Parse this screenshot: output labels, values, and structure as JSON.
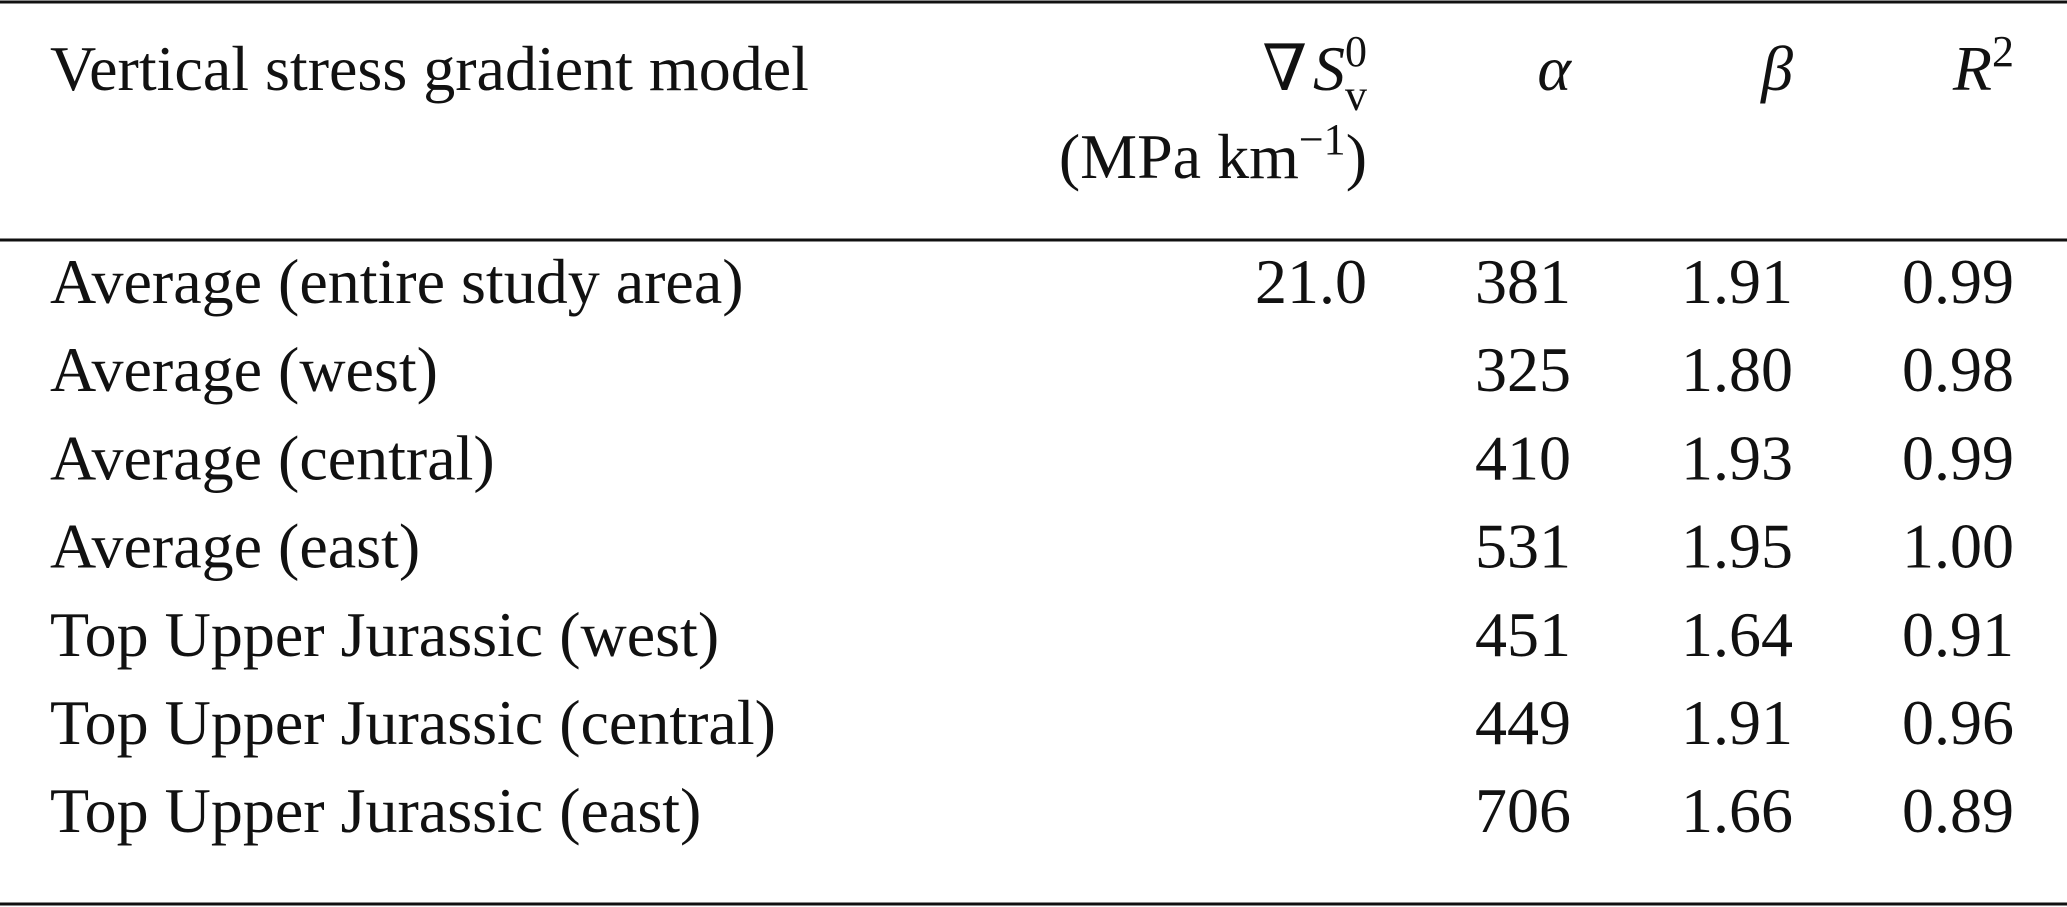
{
  "table": {
    "header": {
      "model": "Vertical stress gradient model",
      "gradient": {
        "op": "∇",
        "var": "S",
        "sub": "v",
        "sup": "0",
        "unit_open": "(MPa km",
        "unit_sup": "−1",
        "unit_close": ")"
      },
      "alpha": "α",
      "beta": "β",
      "r2": {
        "var": "R",
        "sup": "2"
      }
    },
    "rows": [
      {
        "model": "Average (entire study area)",
        "gradient": "21.0",
        "alpha": "381",
        "beta": "1.91",
        "r2": "0.99"
      },
      {
        "model": "Average (west)",
        "alpha": "325",
        "beta": "1.80",
        "r2": "0.98"
      },
      {
        "model": "Average (central)",
        "alpha": "410",
        "beta": "1.93",
        "r2": "0.99"
      },
      {
        "model": "Average (east)",
        "alpha": "531",
        "beta": "1.95",
        "r2": "1.00"
      },
      {
        "model": "Top Upper Jurassic (west)",
        "alpha": "451",
        "beta": "1.64",
        "r2": "0.91"
      },
      {
        "model": "Top Upper Jurassic (central)",
        "alpha": "449",
        "beta": "1.91",
        "r2": "0.96"
      },
      {
        "model": "Top Upper Jurassic (east)",
        "alpha": "706",
        "beta": "1.66",
        "r2": "0.89"
      }
    ]
  }
}
